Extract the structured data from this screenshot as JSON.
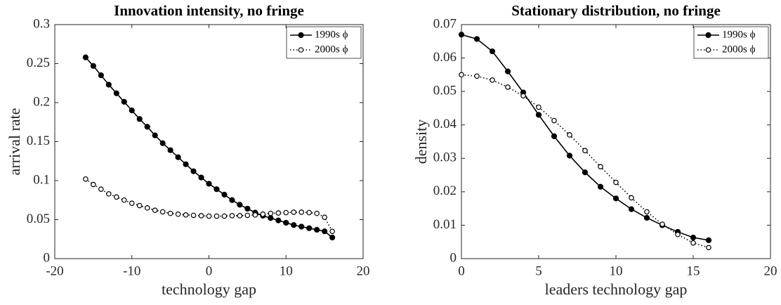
{
  "chart_data": [
    {
      "type": "line",
      "title": "Innovation intensity, no fringe",
      "xlabel": "technology gap",
      "ylabel": "arrival rate",
      "x": [
        -16,
        -15,
        -14,
        -13,
        -12,
        -11,
        -10,
        -9,
        -8,
        -7,
        -6,
        -5,
        -4,
        -3,
        -2,
        -1,
        0,
        1,
        2,
        3,
        4,
        5,
        6,
        7,
        8,
        9,
        10,
        11,
        12,
        13,
        14,
        15,
        16
      ],
      "series": [
        {
          "name": "1990s ϕ",
          "color": "#000000",
          "linestyle": "solid",
          "marker": "filled",
          "values": [
            0.258,
            0.247,
            0.235,
            0.223,
            0.212,
            0.201,
            0.19,
            0.179,
            0.169,
            0.158,
            0.148,
            0.139,
            0.13,
            0.121,
            0.112,
            0.104,
            0.096,
            0.089,
            0.082,
            0.075,
            0.069,
            0.064,
            0.059,
            0.055,
            0.052,
            0.049,
            0.046,
            0.043,
            0.041,
            0.039,
            0.037,
            0.035,
            0.027
          ]
        },
        {
          "name": "2000s ϕ",
          "color": "#000000",
          "linestyle": "dotted",
          "marker": "open",
          "values": [
            0.102,
            0.095,
            0.089,
            0.083,
            0.079,
            0.075,
            0.071,
            0.068,
            0.065,
            0.062,
            0.06,
            0.058,
            0.057,
            0.056,
            0.0555,
            0.055,
            0.0545,
            0.0545,
            0.0545,
            0.055,
            0.055,
            0.0555,
            0.056,
            0.057,
            0.058,
            0.0585,
            0.059,
            0.0595,
            0.0595,
            0.059,
            0.058,
            0.053,
            0.035
          ]
        }
      ],
      "xlim": [
        -20,
        20
      ],
      "xticks": [
        -20,
        -10,
        0,
        10,
        20
      ],
      "ylim": [
        0,
        0.3
      ],
      "yticks": [
        0,
        0.05,
        0.1,
        0.15,
        0.2,
        0.25,
        0.3
      ],
      "legend": "northeast",
      "grid": false
    },
    {
      "type": "line",
      "title": "Stationary distribution, no fringe",
      "xlabel": "leaders technology gap",
      "ylabel": "density",
      "x": [
        0,
        1,
        2,
        3,
        4,
        5,
        6,
        7,
        8,
        9,
        10,
        11,
        12,
        13,
        14,
        15,
        16
      ],
      "series": [
        {
          "name": "1990s ϕ",
          "color": "#000000",
          "linestyle": "solid",
          "marker": "filled",
          "values": [
            0.067,
            0.0657,
            0.062,
            0.056,
            0.0497,
            0.043,
            0.0366,
            0.0308,
            0.0258,
            0.0215,
            0.018,
            0.0148,
            0.0122,
            0.01,
            0.008,
            0.0063,
            0.0055
          ]
        },
        {
          "name": "2000s ϕ",
          "color": "#000000",
          "linestyle": "dotted",
          "marker": "open",
          "values": [
            0.055,
            0.0546,
            0.0534,
            0.0513,
            0.0487,
            0.0453,
            0.0413,
            0.037,
            0.0323,
            0.0275,
            0.0228,
            0.0182,
            0.014,
            0.0103,
            0.0072,
            0.0047,
            0.0033
          ]
        }
      ],
      "xlim": [
        0,
        20
      ],
      "xticks": [
        0,
        5,
        10,
        15,
        20
      ],
      "ylim": [
        0,
        0.07
      ],
      "yticks": [
        0,
        0.01,
        0.02,
        0.03,
        0.04,
        0.05,
        0.06,
        0.07
      ],
      "legend": "northeast",
      "grid": false
    }
  ]
}
